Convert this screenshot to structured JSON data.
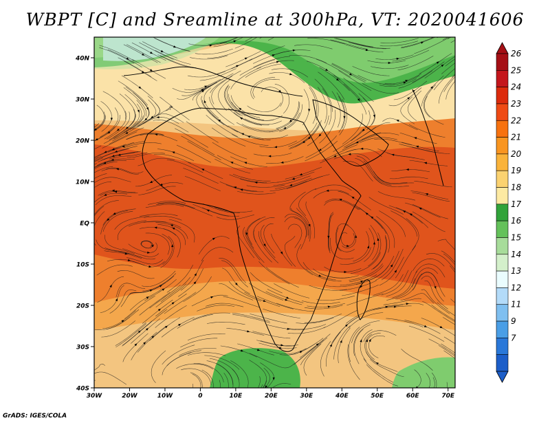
{
  "title": "WBPT [C] and Sreamline at 300hPa, VT: 2020041606",
  "footer": "GrADS: IGES/COLA",
  "map": {
    "lat_labels": [
      "40N",
      "30N",
      "20N",
      "10N",
      "EQ",
      "10S",
      "20S",
      "30S",
      "40S"
    ],
    "lon_labels": [
      "30W",
      "20W",
      "10W",
      "0",
      "10E",
      "20E",
      "30E",
      "40E",
      "50E",
      "60E",
      "70E"
    ],
    "lat_range": [
      -40,
      45
    ],
    "lon_range": [
      -30,
      72
    ]
  },
  "colorbar": {
    "labels": [
      "26",
      "25",
      "24",
      "23",
      "22",
      "21",
      "20",
      "19",
      "18",
      "17",
      "16",
      "15",
      "14",
      "13",
      "12",
      "11",
      "9",
      "7"
    ],
    "colors": [
      "#a50f15",
      "#c4161c",
      "#dc2b0c",
      "#ef4a14",
      "#f7720f",
      "#f99520",
      "#fab33a",
      "#fbd270",
      "#fdeaa2",
      "#31a33a",
      "#64c15a",
      "#a7dc9a",
      "#d4f0cb",
      "#eafcfe",
      "#b3dbf9",
      "#7fbff0",
      "#4a9ee6",
      "#2a78d9",
      "#1c5ec9"
    ]
  },
  "shading_colors": {
    "green_dark": "#4cb44a",
    "green": "#7fcc6e",
    "green_light": "#b6e2a1",
    "cyan": "#c4e8fb",
    "cream": "#fbe2a8",
    "tan": "#f3c580",
    "orange_light": "#f4a74c",
    "orange": "#ee7f2d",
    "red_orange": "#e0541c"
  }
}
